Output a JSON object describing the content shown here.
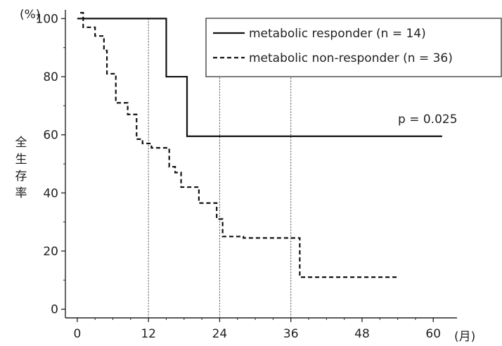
{
  "chart_data": {
    "type": "line",
    "title": "",
    "xlabel": "(月)",
    "ylabel": "全生存率",
    "y_unit": "(%)",
    "xlim": [
      -2,
      64
    ],
    "ylim": [
      -3,
      103
    ],
    "x_ticks": [
      0,
      12,
      24,
      36,
      48,
      60
    ],
    "x_tick_labels": [
      "0",
      "12",
      "24",
      "36",
      "48",
      "60"
    ],
    "y_ticks": [
      0,
      20,
      40,
      60,
      80,
      100
    ],
    "y_tick_labels": [
      "0",
      "20",
      "40",
      "60",
      "80",
      "100"
    ],
    "grid": false,
    "reference_lines_x": [
      12,
      24,
      36
    ],
    "legend_position": "top-right",
    "annotation": "p = 0.025",
    "series": [
      {
        "name": "metabolic responder (n = 14)",
        "style": "solid",
        "color": "#111111",
        "step": true,
        "x": [
          0,
          15,
          15,
          18.5,
          18.5,
          61.5
        ],
        "y": [
          100,
          100,
          80,
          80,
          59.5,
          59.5
        ]
      },
      {
        "name": "metabolic non-responder (n = 36)",
        "style": "dashed",
        "color": "#111111",
        "step": true,
        "x": [
          0.5,
          1,
          3,
          4.5,
          5,
          6.5,
          8.5,
          10,
          11,
          12.5,
          15.5,
          16.5,
          17.5,
          20.5,
          23.5,
          24.5,
          28,
          37.5,
          54
        ],
        "y": [
          102,
          97,
          94,
          89,
          81,
          71,
          67,
          58.5,
          57,
          55.5,
          49,
          47,
          42,
          36.5,
          31,
          25,
          24.5,
          11,
          11
        ]
      }
    ]
  }
}
